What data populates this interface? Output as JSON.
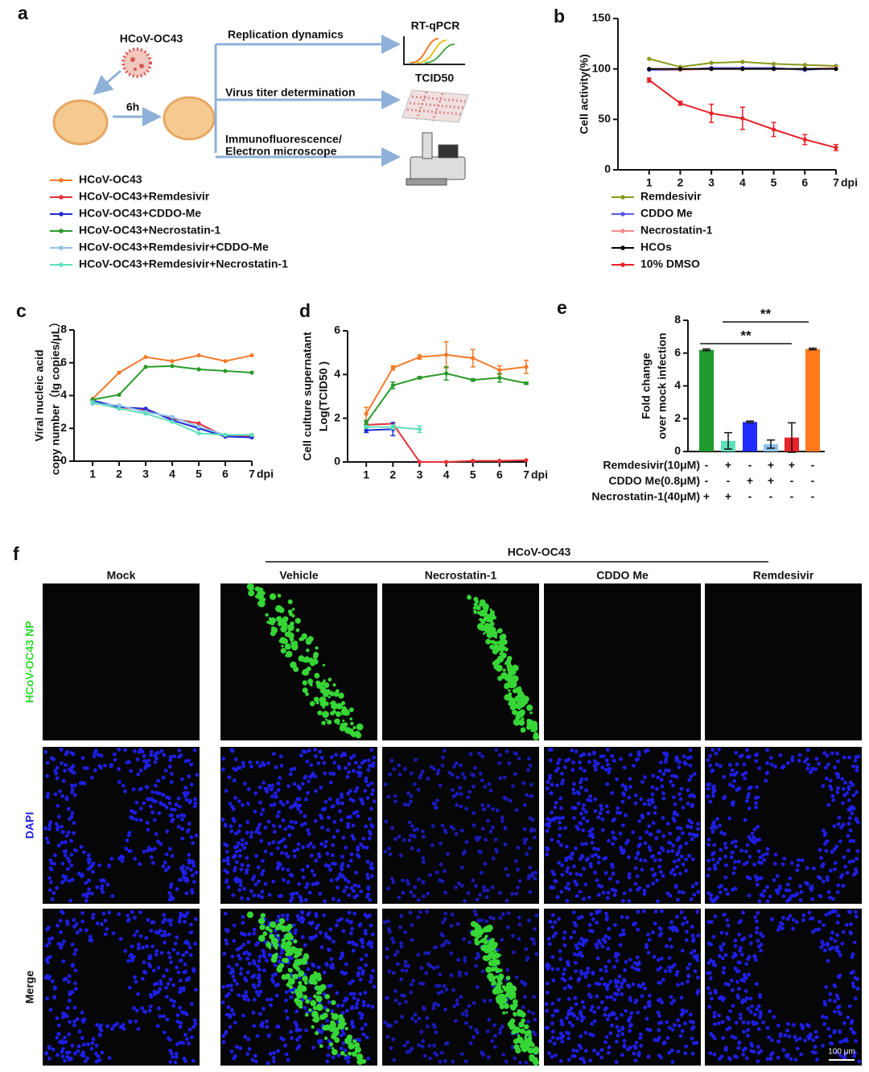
{
  "diagram": {
    "panel": "a",
    "virus": "HCoV-OC43",
    "time": "6h",
    "replication": "Replication dynamics",
    "titer": "Virus titer determination",
    "imaging": [
      "Immunofluorescence/",
      "Electron microscope"
    ],
    "rtqpcr": "RT-qPCR",
    "tcid": "TCID50"
  },
  "chart_data": [
    {
      "panel": "b",
      "type": "line",
      "ylabel": "Cell activity(%)",
      "xlabel": "dpi",
      "x": [
        1,
        2,
        3,
        4,
        5,
        6,
        7
      ],
      "xlim": [
        0,
        7
      ],
      "xticks": [
        1,
        2,
        3,
        4,
        5,
        6,
        7
      ],
      "ylim": [
        0,
        150
      ],
      "yticks": [
        0,
        50,
        100,
        150
      ],
      "series": [
        {
          "name": "Remdesivir",
          "color": "#8c9a1c",
          "values": [
            110,
            102,
            106,
            107,
            105,
            104,
            103
          ]
        },
        {
          "name": "CDDO Me",
          "color": "#5b5be8",
          "values": [
            99,
            99,
            101,
            101,
            101,
            99,
            101
          ]
        },
        {
          "name": "Necrostatin-1",
          "color": "#f28c8c",
          "values": [
            100,
            99,
            100,
            100,
            100,
            100,
            101
          ]
        },
        {
          "name": "HCOs",
          "color": "#000000",
          "values": [
            100,
            100,
            100,
            100,
            100,
            100,
            100
          ]
        },
        {
          "name": "10% DMSO",
          "color": "#e8222a",
          "values": [
            89,
            66,
            56,
            51,
            40,
            30,
            22
          ],
          "errors": [
            2,
            2,
            9,
            11,
            7,
            5,
            3
          ]
        }
      ]
    },
    {
      "panel": "c",
      "type": "line",
      "ylabel": [
        "Viral nucleic acid",
        "copy number（lg copies/μL）"
      ],
      "xlabel": "dpi",
      "x": [
        1,
        2,
        3,
        4,
        5,
        6,
        7
      ],
      "xlim": [
        0.3,
        7
      ],
      "xticks": [
        1,
        2,
        3,
        4,
        5,
        6,
        7
      ],
      "ylim": [
        0,
        8
      ],
      "yticks": [
        0,
        2,
        4,
        6,
        8
      ],
      "series": [
        {
          "name": "HCoV-OC43",
          "color": "#f47a2a",
          "values": [
            3.8,
            5.4,
            6.35,
            6.1,
            6.45,
            6.1,
            6.45
          ]
        },
        {
          "name": "HCoV-OC43+Remdesivir",
          "color": "#e53238",
          "values": [
            3.6,
            3.3,
            3.1,
            2.6,
            2.3,
            1.5,
            1.5
          ]
        },
        {
          "name": "HCoV-OC43+CDDO-Me",
          "color": "#1f2bd6",
          "values": [
            3.7,
            3.3,
            3.2,
            2.5,
            2.0,
            1.5,
            1.45
          ]
        },
        {
          "name": "HCoV-OC43+Necrostatin-1",
          "color": "#2a9a2a",
          "values": [
            3.75,
            4.05,
            5.75,
            5.8,
            5.6,
            5.5,
            5.4
          ]
        },
        {
          "name": "HCoV-OC43+Remdesivir+CDDO-Me",
          "color": "#8fc3ec",
          "values": [
            3.5,
            3.4,
            3.0,
            2.7,
            2.1,
            1.6,
            1.6
          ]
        },
        {
          "name": "HCoV-OC43+Remdesivir+Necrostatin-1",
          "color": "#5fe0b8",
          "values": [
            3.6,
            3.2,
            2.9,
            2.4,
            1.7,
            1.6,
            1.6
          ]
        }
      ]
    },
    {
      "panel": "d",
      "type": "line",
      "ylabel": [
        "Cell culture supernatant",
        "Log(TCID50 )"
      ],
      "xlabel": "dpi",
      "x": [
        1,
        2,
        3,
        4,
        5,
        6,
        7
      ],
      "xlim": [
        0.3,
        7
      ],
      "xticks": [
        1,
        2,
        3,
        4,
        5,
        6,
        7
      ],
      "ylim": [
        0,
        6
      ],
      "yticks": [
        0,
        2,
        4,
        6
      ],
      "series": [
        {
          "color": "#f47a2a",
          "values": [
            2.2,
            4.3,
            4.8,
            4.9,
            4.75,
            4.2,
            4.35
          ],
          "errors": [
            0.3,
            0.1,
            0.1,
            0.6,
            0.4,
            0.2,
            0.3
          ]
        },
        {
          "color": "#e53238",
          "values": [
            1.7,
            1.75,
            0,
            0,
            0.05,
            0.05,
            0.08
          ]
        },
        {
          "color": "#1f2bd6",
          "values": [
            1.45,
            1.5,
            null,
            null,
            null,
            null,
            null
          ],
          "errors": [
            0.1,
            0.3,
            null,
            null,
            null,
            null,
            null
          ]
        },
        {
          "color": "#2a9a2a",
          "values": [
            1.8,
            3.5,
            3.85,
            4.05,
            3.75,
            3.85,
            3.6
          ],
          "errors": [
            0.1,
            0.15,
            0.05,
            0.3,
            0.05,
            0.2,
            0.05
          ]
        },
        {
          "color": "#5fe0b8",
          "values": [
            1.6,
            1.6,
            1.5,
            null,
            null,
            null,
            null
          ],
          "errors": [
            0.05,
            0.1,
            0.15,
            null,
            null,
            null,
            null
          ]
        }
      ]
    },
    {
      "panel": "e",
      "type": "bar",
      "ylabel": [
        "Fold change",
        "over mock infection"
      ],
      "ylim": [
        0,
        8
      ],
      "yticks": [
        0,
        2,
        4,
        6,
        8
      ],
      "values": [
        6.2,
        0.65,
        1.8,
        0.45,
        0.85,
        6.25
      ],
      "errors": [
        0.05,
        0.5,
        0.05,
        0.25,
        0.9,
        0.05
      ],
      "colors": [
        "#1f9a2e",
        "#5fe0b8",
        "#1f2bff",
        "#8fc3ec",
        "#e8222a",
        "#ff7a1a"
      ],
      "annotations": [
        "**",
        "**"
      ],
      "treatments": [
        {
          "label": "Remdesivir(10μM)",
          "signs": [
            "-",
            "+",
            "-",
            "+",
            "+",
            "-"
          ]
        },
        {
          "label": "CDDO Me(0.8μM)",
          "signs": [
            "-",
            "-",
            "+",
            "+",
            "-",
            "-"
          ]
        },
        {
          "label": "Necrostatin-1(40μM)",
          "signs": [
            "+",
            "+",
            "-",
            "-",
            "-",
            "-"
          ]
        }
      ]
    }
  ],
  "figure_f": {
    "panel": "f",
    "group_label": "HCoV-OC43",
    "columns": [
      "Mock",
      "Vehicle",
      "Necrostatin-1",
      "CDDO Me",
      "Remdesivir"
    ],
    "rows": [
      "HCoV-OC43 NP",
      "DAPI",
      "Merge"
    ],
    "scale_bar": "100 μm"
  }
}
